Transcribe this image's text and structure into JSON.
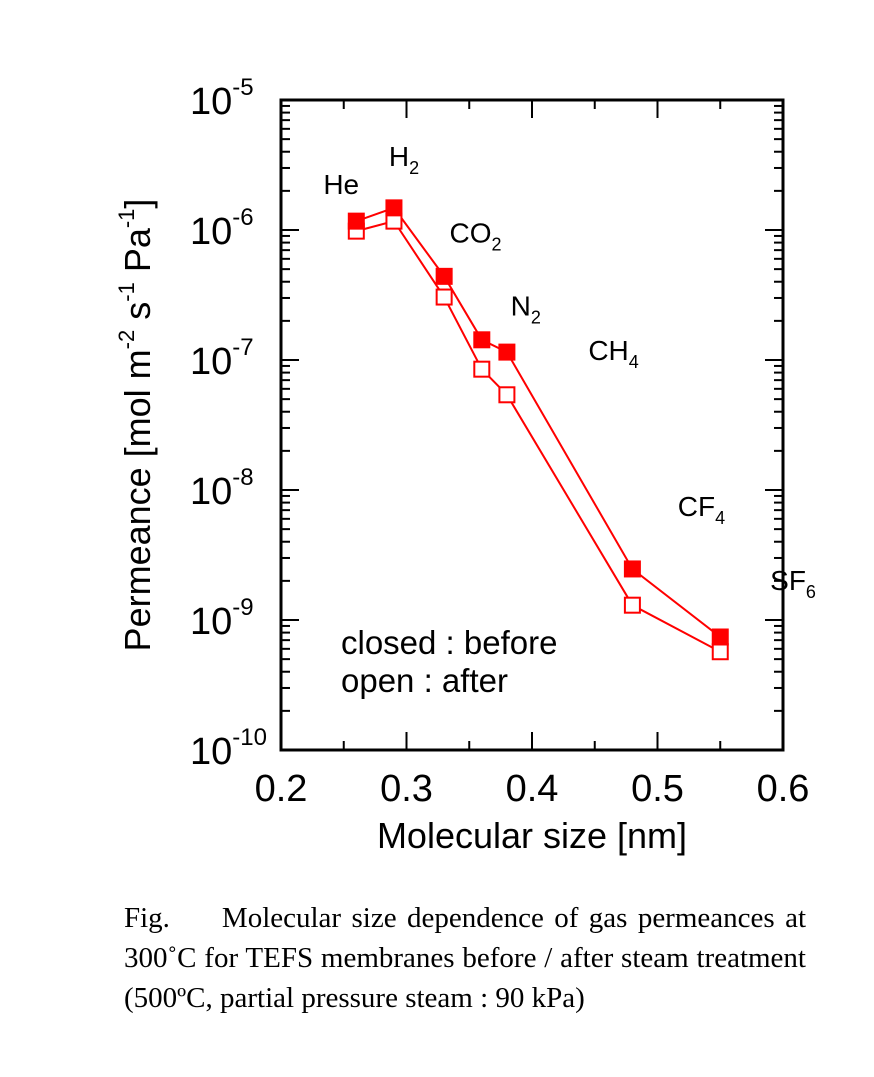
{
  "chart_data": {
    "type": "line",
    "title": "",
    "xlabel": "Molecular size [nm]",
    "ylabel": {
      "parts": [
        {
          "text": "Permeance [mol m",
          "sup": false
        },
        {
          "text": "-2",
          "sup": true
        },
        {
          "text": " s",
          "sup": false
        },
        {
          "text": "-1",
          "sup": true
        },
        {
          "text": " Pa",
          "sup": false
        },
        {
          "text": "-1",
          "sup": true
        },
        {
          "text": "]",
          "sup": false
        }
      ]
    },
    "xlim": [
      0.2,
      0.6
    ],
    "ylim": [
      1e-10,
      1e-05
    ],
    "yscale": "log",
    "x_ticks": [
      {
        "value": 0.2,
        "label": "0.2"
      },
      {
        "value": 0.3,
        "label": "0.3"
      },
      {
        "value": 0.4,
        "label": "0.4"
      },
      {
        "value": 0.5,
        "label": "0.5"
      },
      {
        "value": 0.6,
        "label": "0.6"
      }
    ],
    "y_ticks": [
      {
        "value": 1e-05,
        "base": "10",
        "exp": "-5"
      },
      {
        "value": 1e-06,
        "base": "10",
        "exp": "-6"
      },
      {
        "value": 1e-07,
        "base": "10",
        "exp": "-7"
      },
      {
        "value": 1e-08,
        "base": "10",
        "exp": "-8"
      },
      {
        "value": 1e-09,
        "base": "10",
        "exp": "-9"
      },
      {
        "value": 1e-10,
        "base": "10",
        "exp": "-10"
      }
    ],
    "grid": false,
    "series": [
      {
        "name": "before (closed)",
        "marker": "filled-square",
        "color": "#ff0000",
        "x": [
          0.26,
          0.29,
          0.33,
          0.36,
          0.38,
          0.48,
          0.55
        ],
        "values": [
          1.17e-06,
          1.48e-06,
          4.4e-07,
          1.43e-07,
          1.15e-07,
          2.47e-09,
          7.4e-10
        ]
      },
      {
        "name": "after (open)",
        "marker": "open-square",
        "color": "#ff0000",
        "x": [
          0.26,
          0.29,
          0.33,
          0.36,
          0.38,
          0.48,
          0.55
        ],
        "values": [
          9.8e-07,
          1.17e-06,
          3.05e-07,
          8.5e-08,
          5.4e-08,
          1.3e-09,
          5.7e-10
        ]
      }
    ],
    "annotations": [
      {
        "base": "He",
        "sub": "",
        "x": 0.248,
        "y": 1.9e-06
      },
      {
        "base": "H",
        "sub": "2",
        "x": 0.298,
        "y": 3.1e-06
      },
      {
        "base": "CO",
        "sub": "2",
        "x": 0.355,
        "y": 8e-07
      },
      {
        "base": "N",
        "sub": "2",
        "x": 0.395,
        "y": 2.2e-07
      },
      {
        "base": "CH",
        "sub": "4",
        "x": 0.465,
        "y": 1e-07
      },
      {
        "base": "CF",
        "sub": "4",
        "x": 0.535,
        "y": 6.3e-09
      },
      {
        "base": "SF",
        "sub": "6",
        "x": 0.608,
        "y": 1.7e-09
      }
    ],
    "legend": {
      "position": "bottom-left",
      "lines": [
        "closed : before",
        "open : after"
      ]
    }
  },
  "caption": "Fig.     Molecular size dependence of gas permeances at 300˚C for TEFS membranes before / after steam treatment (500ºC, partial pressure steam : 90 kPa)"
}
